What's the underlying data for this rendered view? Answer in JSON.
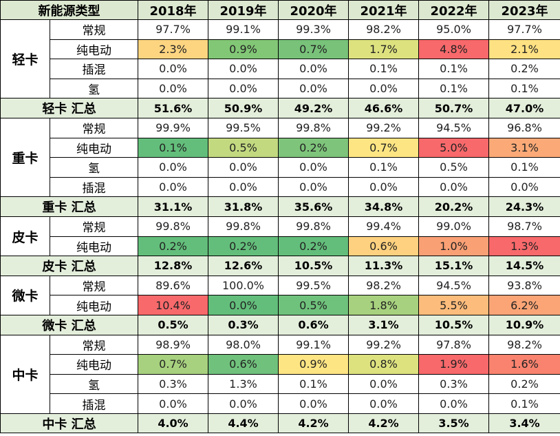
{
  "header": [
    "新能源类型",
    "2018年",
    "2019年",
    "2020年",
    "2021年",
    "2022年",
    "2023年"
  ],
  "groups": [
    {
      "label": "轻卡",
      "rows": [
        {
          "type": "常规",
          "values": [
            "97.7%",
            "99.1%",
            "99.3%",
            "98.2%",
            "95.0%",
            "97.7%"
          ]
        },
        {
          "type": "纯电动",
          "values": [
            "2.3%",
            "0.9%",
            "0.7%",
            "1.7%",
            "4.8%",
            "2.1%"
          ],
          "colors": [
            "#fdd581",
            "#82c776",
            "#78c27a",
            "#dde27f",
            "#f8696b",
            "#fee182"
          ]
        },
        {
          "type": "插混",
          "values": [
            "0.0%",
            "0.0%",
            "0.0%",
            "0.1%",
            "0.1%",
            "0.2%"
          ]
        },
        {
          "type": "氢",
          "values": [
            "0.0%",
            "0.0%",
            "0.0%",
            "0.0%",
            "0.1%",
            "0.1%"
          ]
        }
      ],
      "total_label": "轻卡 汇总",
      "total": [
        "51.6%",
        "50.9%",
        "49.2%",
        "46.6%",
        "50.7%",
        "47.0%"
      ]
    },
    {
      "label": "重卡",
      "rows": [
        {
          "type": "常规",
          "values": [
            "99.9%",
            "99.5%",
            "99.8%",
            "99.2%",
            "94.5%",
            "96.8%"
          ]
        },
        {
          "type": "纯电动",
          "values": [
            "0.1%",
            "0.5%",
            "0.2%",
            "0.7%",
            "5.0%",
            "3.1%"
          ],
          "colors": [
            "#63be7b",
            "#c2d980",
            "#7ec47b",
            "#fee583",
            "#f8696b",
            "#fbaa77"
          ]
        },
        {
          "type": "氢",
          "values": [
            "0.0%",
            "0.0%",
            "0.0%",
            "0.1%",
            "0.5%",
            "0.1%"
          ]
        },
        {
          "type": "插混",
          "values": [
            "0.0%",
            "0.0%",
            "0.0%",
            "0.0%",
            "0.0%",
            "0.0%"
          ]
        }
      ],
      "total_label": "重卡 汇总",
      "total": [
        "31.1%",
        "31.8%",
        "35.6%",
        "34.8%",
        "20.2%",
        "24.3%"
      ]
    },
    {
      "label": "皮卡",
      "rows": [
        {
          "type": "常规",
          "values": [
            "99.8%",
            "99.8%",
            "99.8%",
            "99.4%",
            "99.0%",
            "98.7%"
          ]
        },
        {
          "type": "纯电动",
          "values": [
            "0.2%",
            "0.2%",
            "0.2%",
            "0.6%",
            "1.0%",
            "1.3%"
          ],
          "colors": [
            "#63be7b",
            "#63be7b",
            "#63be7b",
            "#fdd17f",
            "#faa075",
            "#f8696b"
          ]
        }
      ],
      "total_label": "皮卡 汇总",
      "total": [
        "12.8%",
        "12.6%",
        "10.5%",
        "11.3%",
        "15.1%",
        "14.5%"
      ]
    },
    {
      "label": "微卡",
      "rows": [
        {
          "type": "常规",
          "values": [
            "89.6%",
            "100.0%",
            "99.5%",
            "98.2%",
            "94.5%",
            "93.8%"
          ]
        },
        {
          "type": "纯电动",
          "values": [
            "10.4%",
            "0.0%",
            "0.5%",
            "1.8%",
            "5.5%",
            "6.2%"
          ],
          "colors": [
            "#f8696b",
            "#63be7b",
            "#6fc27c",
            "#a7d17e",
            "#fcbc7b",
            "#fba576"
          ]
        }
      ],
      "total_label": "微卡 汇总",
      "total": [
        "0.5%",
        "0.3%",
        "0.6%",
        "3.1%",
        "10.5%",
        "10.9%"
      ]
    },
    {
      "label": "中卡",
      "rows": [
        {
          "type": "常规",
          "values": [
            "98.9%",
            "98.0%",
            "99.1%",
            "99.2%",
            "97.8%",
            "98.2%"
          ]
        },
        {
          "type": "纯电动",
          "values": [
            "0.7%",
            "0.6%",
            "0.9%",
            "0.8%",
            "1.9%",
            "1.6%"
          ],
          "colors": [
            "#a7d17e",
            "#70c17c",
            "#fee583",
            "#dde27f",
            "#f8696b",
            "#f9836f"
          ]
        },
        {
          "type": "氢",
          "values": [
            "0.3%",
            "1.3%",
            "0.1%",
            "0.0%",
            "0.3%",
            "0.2%"
          ]
        },
        {
          "type": "插混",
          "values": [
            "0.0%",
            "0.0%",
            "0.0%",
            "0.0%",
            "0.0%",
            "0.1%"
          ]
        }
      ],
      "total_label": "中卡 汇总",
      "total": [
        "4.0%",
        "4.4%",
        "4.2%",
        "4.2%",
        "3.5%",
        "3.4%"
      ]
    }
  ]
}
